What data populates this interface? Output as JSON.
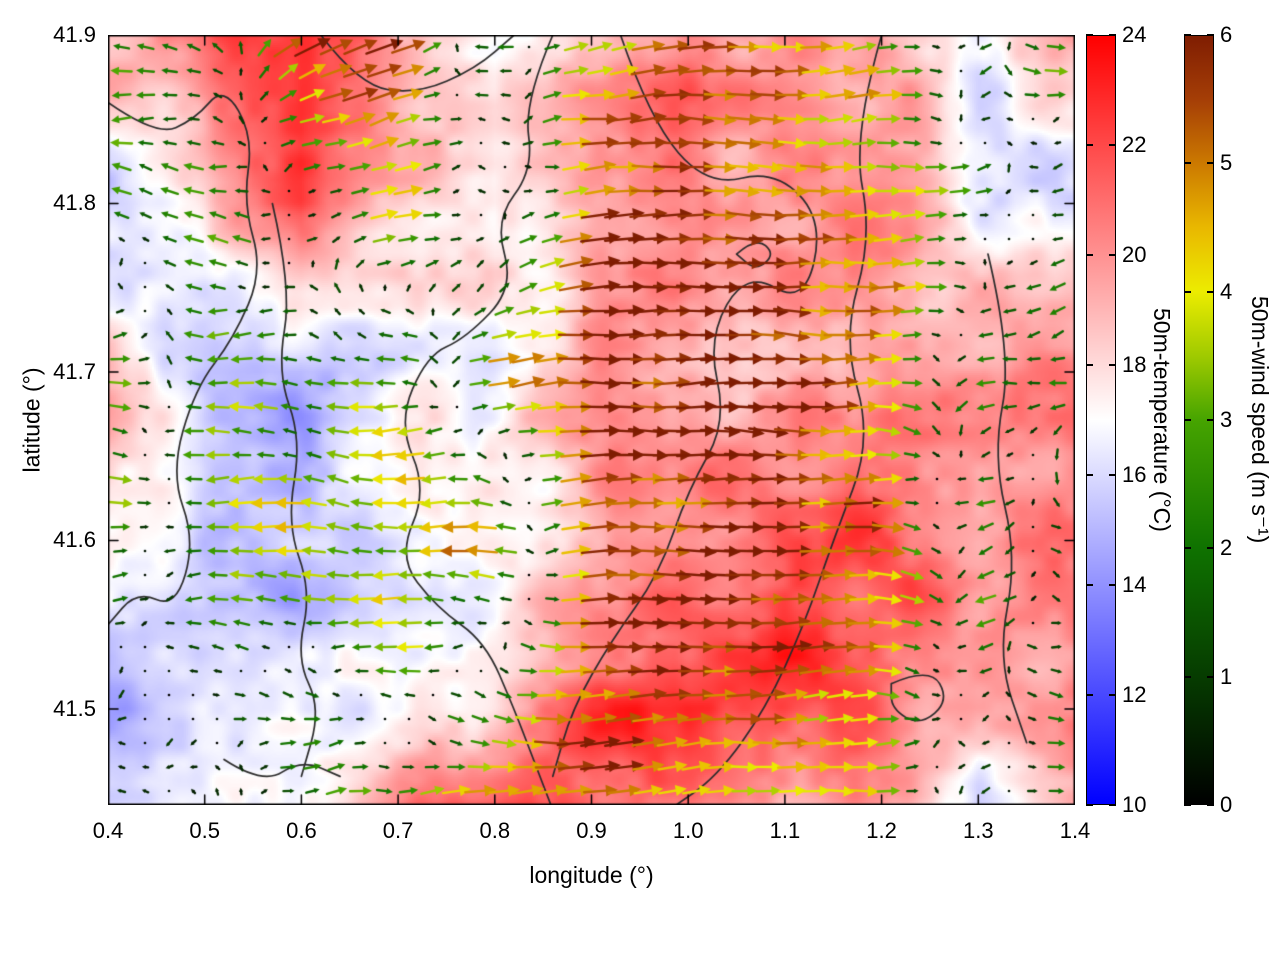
{
  "chart_data": {
    "type": "heatmap",
    "subtype": "temperature-field-with-wind-vector-overlay-and-contours",
    "title": "",
    "xlabel": "longitude (°)",
    "ylabel": "latitude (°)",
    "xlim": [
      0.4,
      1.4
    ],
    "ylim": [
      41.443,
      41.9
    ],
    "grid": false,
    "x_ticks": [
      {
        "value": 0.4,
        "label": "0.4"
      },
      {
        "value": 0.5,
        "label": "0.5"
      },
      {
        "value": 0.6,
        "label": "0.6"
      },
      {
        "value": 0.7,
        "label": "0.7"
      },
      {
        "value": 0.8,
        "label": "0.8"
      },
      {
        "value": 0.9,
        "label": "0.9"
      },
      {
        "value": 1.0,
        "label": "1.0"
      },
      {
        "value": 1.1,
        "label": "1.1"
      },
      {
        "value": 1.2,
        "label": "1.2"
      },
      {
        "value": 1.3,
        "label": "1.3"
      },
      {
        "value": 1.4,
        "label": "1.4"
      }
    ],
    "y_ticks": [
      {
        "value": 41.5,
        "label": "41.5"
      },
      {
        "value": 41.6,
        "label": "41.6"
      },
      {
        "value": 41.7,
        "label": "41.7"
      },
      {
        "value": 41.8,
        "label": "41.8"
      },
      {
        "value": 41.9,
        "label": "41.9"
      }
    ],
    "temperature": {
      "label": "50m-temperature (°C)",
      "units": "°C",
      "range": [
        10,
        24
      ],
      "ticks": [
        {
          "value": 10,
          "label": "10"
        },
        {
          "value": 12,
          "label": "12"
        },
        {
          "value": 14,
          "label": "14"
        },
        {
          "value": 16,
          "label": "16"
        },
        {
          "value": 18,
          "label": "18"
        },
        {
          "value": 20,
          "label": "20"
        },
        {
          "value": 22,
          "label": "22"
        },
        {
          "value": 24,
          "label": "24"
        }
      ],
      "colormap_stops": [
        {
          "pos": 0.0,
          "color": "#0000ff"
        },
        {
          "pos": 0.5,
          "color": "#ffffff"
        },
        {
          "pos": 1.0,
          "color": "#ff0000"
        }
      ],
      "grid_lon": [
        0.4,
        0.5,
        0.6,
        0.7,
        0.8,
        0.9,
        1.0,
        1.1,
        1.2,
        1.3,
        1.4
      ],
      "grid_lat": [
        41.9,
        41.8,
        41.7,
        41.6,
        41.5,
        41.44
      ],
      "values_c": [
        [
          20.0,
          21.0,
          22.0,
          19.0,
          16.5,
          19.0,
          21.0,
          19.5,
          20.0,
          16.0,
          19.0
        ],
        [
          15.5,
          18.0,
          22.0,
          19.0,
          17.0,
          19.5,
          20.0,
          20.0,
          19.5,
          17.5,
          16.0
        ],
        [
          18.5,
          15.5,
          15.0,
          17.0,
          17.5,
          19.0,
          19.5,
          19.0,
          20.0,
          19.0,
          20.0
        ],
        [
          18.5,
          15.0,
          15.0,
          15.5,
          17.0,
          19.0,
          20.5,
          21.5,
          22.0,
          20.0,
          21.0
        ],
        [
          15.0,
          16.5,
          15.5,
          17.0,
          19.0,
          22.5,
          23.0,
          22.5,
          21.0,
          19.5,
          20.0
        ],
        [
          17.0,
          16.5,
          17.0,
          20.0,
          22.0,
          22.0,
          20.0,
          20.0,
          19.5,
          16.0,
          19.0
        ]
      ]
    },
    "wind": {
      "label": "50m-wind speed (m s⁻¹)",
      "units": "m s⁻¹",
      "range": [
        0,
        6
      ],
      "ticks": [
        {
          "value": 0,
          "label": "0"
        },
        {
          "value": 1,
          "label": "1"
        },
        {
          "value": 2,
          "label": "2"
        },
        {
          "value": 3,
          "label": "3"
        },
        {
          "value": 4,
          "label": "4"
        },
        {
          "value": 5,
          "label": "5"
        },
        {
          "value": 6,
          "label": "6"
        }
      ],
      "colormap_stops": [
        {
          "pos": 0.0,
          "color": "#000000"
        },
        {
          "pos": 0.167,
          "color": "#063c00"
        },
        {
          "pos": 0.333,
          "color": "#0f7200"
        },
        {
          "pos": 0.5,
          "color": "#46a400"
        },
        {
          "pos": 0.583,
          "color": "#9fca00"
        },
        {
          "pos": 0.667,
          "color": "#ecec00"
        },
        {
          "pos": 0.75,
          "color": "#e9b800"
        },
        {
          "pos": 0.833,
          "color": "#cc7a00"
        },
        {
          "pos": 0.917,
          "color": "#a53e06"
        },
        {
          "pos": 1.0,
          "color": "#7f1d02"
        }
      ],
      "grid_lon": [
        0.4,
        0.5,
        0.6,
        0.7,
        0.8,
        0.9,
        1.0,
        1.1,
        1.2,
        1.3,
        1.4
      ],
      "grid_lat": [
        41.9,
        41.8,
        41.7,
        41.6,
        41.5,
        41.44
      ],
      "u_ms": [
        [
          -2.5,
          -2.0,
          5.0,
          5.0,
          -2.0,
          4.0,
          5.0,
          4.0,
          3.0,
          -2.0,
          4.0
        ],
        [
          -3.0,
          -2.5,
          0.6,
          4.5,
          -2.0,
          5.5,
          6.0,
          5.5,
          5.0,
          2.0,
          -2.0
        ],
        [
          4.0,
          -2.5,
          -2.0,
          -3.5,
          4.5,
          6.0,
          6.0,
          6.0,
          5.0,
          -2.0,
          -2.5
        ],
        [
          4.0,
          -3.5,
          -3.5,
          -4.0,
          -5.0,
          5.0,
          5.5,
          5.5,
          5.0,
          -2.0,
          2.0
        ],
        [
          -1.5,
          0.3,
          1.5,
          -2.0,
          3.0,
          5.5,
          6.0,
          5.0,
          4.0,
          -1.5,
          2.0
        ],
        [
          -1.0,
          0.3,
          1.0,
          4.0,
          5.0,
          5.0,
          4.0,
          4.0,
          3.0,
          -1.5,
          3.0
        ]
      ],
      "v_ms": [
        [
          0.5,
          0.8,
          2.5,
          1.5,
          -0.5,
          0.8,
          0.3,
          -0.5,
          0.3,
          -0.5,
          0.3
        ],
        [
          0.0,
          0.3,
          0.3,
          1.0,
          0.3,
          0.5,
          0.0,
          -0.3,
          0.0,
          0.5,
          -0.3
        ],
        [
          0.3,
          0.0,
          0.3,
          0.0,
          0.8,
          0.3,
          0.0,
          -0.3,
          0.0,
          -0.3,
          -0.3
        ],
        [
          0.0,
          0.0,
          0.3,
          0.0,
          0.3,
          0.3,
          0.0,
          0.0,
          -0.3,
          -0.8,
          -0.5
        ],
        [
          -0.3,
          -0.2,
          -0.4,
          -0.2,
          -0.6,
          0.0,
          0.0,
          0.0,
          0.0,
          -0.8,
          -0.3
        ],
        [
          -0.3,
          0.2,
          -0.3,
          0.8,
          0.8,
          0.3,
          0.3,
          0.0,
          0.3,
          -0.3,
          0.3
        ]
      ]
    },
    "contours_lonlat": [
      [
        [
          0.4,
          41.86
        ],
        [
          0.45,
          41.84
        ],
        [
          0.49,
          41.85
        ],
        [
          0.52,
          41.87
        ],
        [
          0.55,
          41.84
        ],
        [
          0.54,
          41.8
        ],
        [
          0.56,
          41.76
        ],
        [
          0.53,
          41.72
        ],
        [
          0.49,
          41.69
        ],
        [
          0.465,
          41.64
        ],
        [
          0.49,
          41.6
        ],
        [
          0.47,
          41.56
        ],
        [
          0.43,
          41.57
        ],
        [
          0.4,
          41.55
        ]
      ],
      [
        [
          0.57,
          41.8
        ],
        [
          0.59,
          41.75
        ],
        [
          0.575,
          41.7
        ],
        [
          0.6,
          41.66
        ],
        [
          0.585,
          41.61
        ],
        [
          0.61,
          41.57
        ],
        [
          0.595,
          41.53
        ],
        [
          0.62,
          41.5
        ],
        [
          0.6,
          41.46
        ]
      ],
      [
        [
          0.62,
          41.9
        ],
        [
          0.66,
          41.87
        ],
        [
          0.72,
          41.865
        ],
        [
          0.78,
          41.88
        ],
        [
          0.82,
          41.9
        ]
      ],
      [
        [
          0.86,
          41.9
        ],
        [
          0.83,
          41.86
        ],
        [
          0.84,
          41.82
        ],
        [
          0.8,
          41.79
        ],
        [
          0.82,
          41.75
        ],
        [
          0.77,
          41.72
        ],
        [
          0.73,
          41.71
        ],
        [
          0.7,
          41.67
        ],
        [
          0.73,
          41.63
        ],
        [
          0.7,
          41.59
        ],
        [
          0.74,
          41.56
        ],
        [
          0.79,
          41.54
        ],
        [
          0.82,
          41.5
        ],
        [
          0.84,
          41.47
        ],
        [
          0.86,
          41.44
        ]
      ],
      [
        [
          0.93,
          41.9
        ],
        [
          0.96,
          41.85
        ],
        [
          1.02,
          41.81
        ],
        [
          1.09,
          41.82
        ],
        [
          1.14,
          41.79
        ],
        [
          1.12,
          41.74
        ],
        [
          1.06,
          41.76
        ],
        [
          1.02,
          41.72
        ],
        [
          1.04,
          41.67
        ],
        [
          1.0,
          41.63
        ],
        [
          0.97,
          41.58
        ],
        [
          0.92,
          41.54
        ],
        [
          0.88,
          41.5
        ],
        [
          0.86,
          41.46
        ]
      ],
      [
        [
          1.2,
          41.9
        ],
        [
          1.17,
          41.84
        ],
        [
          1.19,
          41.78
        ],
        [
          1.16,
          41.72
        ],
        [
          1.19,
          41.66
        ],
        [
          1.15,
          41.6
        ],
        [
          1.12,
          41.55
        ],
        [
          1.08,
          41.5
        ],
        [
          1.03,
          41.46
        ],
        [
          0.98,
          41.44
        ]
      ],
      [
        [
          1.31,
          41.77
        ],
        [
          1.335,
          41.71
        ],
        [
          1.315,
          41.65
        ],
        [
          1.34,
          41.59
        ],
        [
          1.32,
          41.53
        ],
        [
          1.35,
          41.48
        ]
      ],
      [
        [
          1.21,
          41.515
        ],
        [
          1.25,
          41.525
        ],
        [
          1.27,
          41.505
        ],
        [
          1.24,
          41.49
        ],
        [
          1.21,
          41.5
        ],
        [
          1.21,
          41.515
        ]
      ],
      [
        [
          1.05,
          41.77
        ],
        [
          1.07,
          41.78
        ],
        [
          1.09,
          41.77
        ],
        [
          1.07,
          41.76
        ],
        [
          1.05,
          41.77
        ]
      ],
      [
        [
          0.52,
          41.47
        ],
        [
          0.56,
          41.455
        ],
        [
          0.6,
          41.47
        ],
        [
          0.64,
          41.46
        ]
      ]
    ],
    "style": {
      "background": "#ffffff",
      "border_color": "#000000",
      "contour_color": "#2b2b2b"
    }
  }
}
